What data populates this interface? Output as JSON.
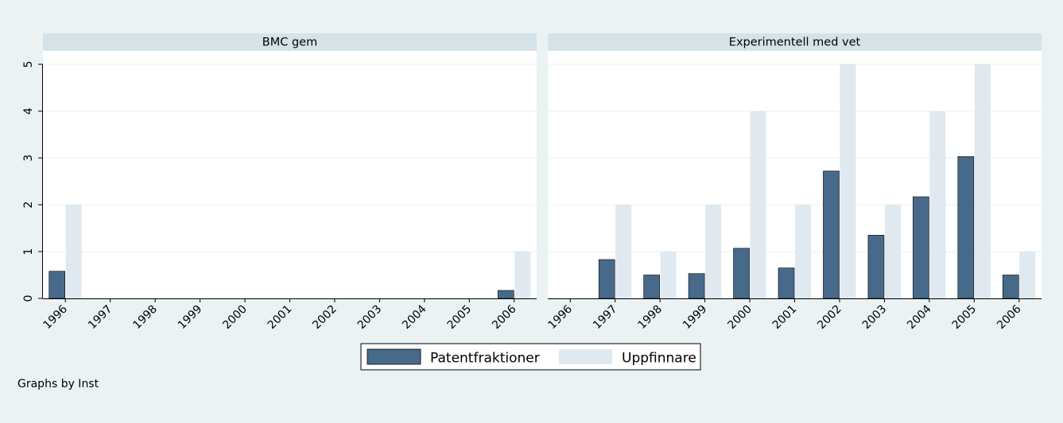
{
  "chart_data": [
    {
      "type": "bar",
      "title": "BMC gem",
      "xlabel": "",
      "ylabel": "",
      "categories": [
        "1996",
        "1997",
        "1998",
        "1999",
        "2000",
        "2001",
        "2002",
        "2003",
        "2004",
        "2005",
        "2006"
      ],
      "ylim": [
        0,
        5
      ],
      "yticks": [
        "0",
        "1",
        "2",
        "3",
        "4",
        "5"
      ],
      "grid": true,
      "series": [
        {
          "name": "Patentfraktioner",
          "color": "#476a8a",
          "values": [
            0.58,
            0,
            0,
            0,
            0,
            0,
            0,
            0,
            0,
            0,
            0.17
          ]
        },
        {
          "name": "Uppfinnare",
          "color": "#e0e9ef",
          "values": [
            2,
            0,
            0,
            0,
            0,
            0,
            0,
            0,
            0,
            0,
            1
          ]
        }
      ]
    },
    {
      "type": "bar",
      "title": "Experimentell med vet",
      "xlabel": "",
      "ylabel": "",
      "categories": [
        "1996",
        "1997",
        "1998",
        "1999",
        "2000",
        "2001",
        "2002",
        "2003",
        "2004",
        "2005",
        "2006"
      ],
      "ylim": [
        0,
        5
      ],
      "yticks": [
        "0",
        "1",
        "2",
        "3",
        "4",
        "5"
      ],
      "grid": true,
      "series": [
        {
          "name": "Patentfraktioner",
          "color": "#476a8a",
          "values": [
            0,
            0.83,
            0.5,
            0.53,
            1.07,
            0.65,
            2.72,
            1.35,
            2.17,
            3.03,
            0.5
          ]
        },
        {
          "name": "Uppfinnare",
          "color": "#e0e9ef",
          "values": [
            0,
            2,
            1,
            2,
            4,
            2,
            5,
            2,
            4,
            5,
            1
          ]
        }
      ]
    }
  ],
  "legend": {
    "placement": "bottom",
    "items": [
      {
        "label": "Patentfraktioner",
        "color": "#476a8a"
      },
      {
        "label": "Uppfinnare",
        "color": "#e0e9ef"
      }
    ]
  },
  "note": "Graphs by Inst"
}
